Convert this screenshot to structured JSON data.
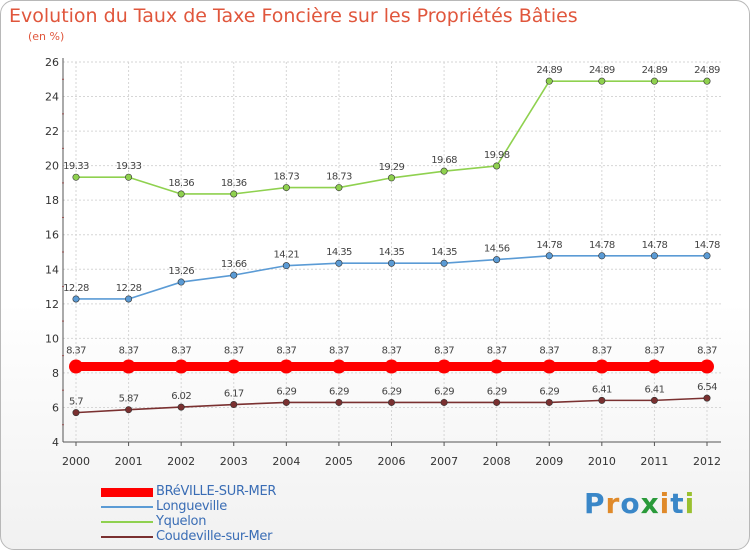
{
  "title": "Evolution du Taux de Taxe Foncière sur les Propriétés Bâties",
  "unit": "(en %)",
  "logo": {
    "text": "Proxiti",
    "letter_colors": [
      "#3a87c8",
      "#e08a2a",
      "#3a87c8",
      "#2a9a3a",
      "#e08a2a",
      "#3a87c8",
      "#9ac030"
    ]
  },
  "chart_data": {
    "type": "line",
    "title": "Evolution du Taux de Taxe Foncière sur les Propriétés Bâties",
    "ylabel": "(en %)",
    "xlabel": "",
    "x": [
      "2000",
      "2001",
      "2002",
      "2003",
      "2004",
      "2005",
      "2006",
      "2007",
      "2008",
      "2009",
      "2010",
      "2011",
      "2012"
    ],
    "ylim": [
      4,
      26
    ],
    "yticks": [
      "4",
      "6",
      "8",
      "10",
      "12",
      "14",
      "16",
      "18",
      "20",
      "22",
      "24",
      "26"
    ],
    "grid": true,
    "legend_position": "bottom-left",
    "series": [
      {
        "name": "BRéVILLE-SUR-MER",
        "color": "#ff0000",
        "emphasis": true,
        "values": [
          8.37,
          8.37,
          8.37,
          8.37,
          8.37,
          8.37,
          8.37,
          8.37,
          8.37,
          8.37,
          8.37,
          8.37,
          8.37
        ],
        "labels": [
          "8.37",
          "8.37",
          "8.37",
          "8.37",
          "8.37",
          "8.37",
          "8.37",
          "8.37",
          "8.37",
          "8.37",
          "8.37",
          "8.37",
          "8.37"
        ]
      },
      {
        "name": "Longueville",
        "color": "#5b9bd5",
        "emphasis": false,
        "values": [
          12.28,
          12.28,
          13.26,
          13.66,
          14.21,
          14.35,
          14.35,
          14.35,
          14.56,
          14.78,
          14.78,
          14.78,
          14.78
        ],
        "labels": [
          "12.28",
          "12.28",
          "13.26",
          "13.66",
          "14.21",
          "14.35",
          "14.35",
          "14.35",
          "14.56",
          "14.78",
          "14.78",
          "14.78",
          "14.78"
        ]
      },
      {
        "name": "Yquelon",
        "color": "#8fd14f",
        "emphasis": false,
        "values": [
          19.33,
          19.33,
          18.36,
          18.36,
          18.73,
          18.73,
          19.29,
          19.68,
          19.98,
          24.89,
          24.89,
          24.89,
          24.89
        ],
        "labels": [
          "19.33",
          "19.33",
          "18.36",
          "18.36",
          "18.73",
          "18.73",
          "19.29",
          "19.68",
          "19.98",
          "24.89",
          "24.89",
          "24.89",
          "24.89"
        ]
      },
      {
        "name": "Coudeville-sur-Mer",
        "color": "#7a3030",
        "emphasis": false,
        "values": [
          5.7,
          5.87,
          6.02,
          6.17,
          6.29,
          6.29,
          6.29,
          6.29,
          6.29,
          6.29,
          6.41,
          6.41,
          6.54
        ],
        "labels": [
          "5.7",
          "5.87",
          "6.02",
          "6.17",
          "6.29",
          "6.29",
          "6.29",
          "6.29",
          "6.29",
          "6.29",
          "6.41",
          "6.41",
          "6.54"
        ]
      }
    ]
  }
}
